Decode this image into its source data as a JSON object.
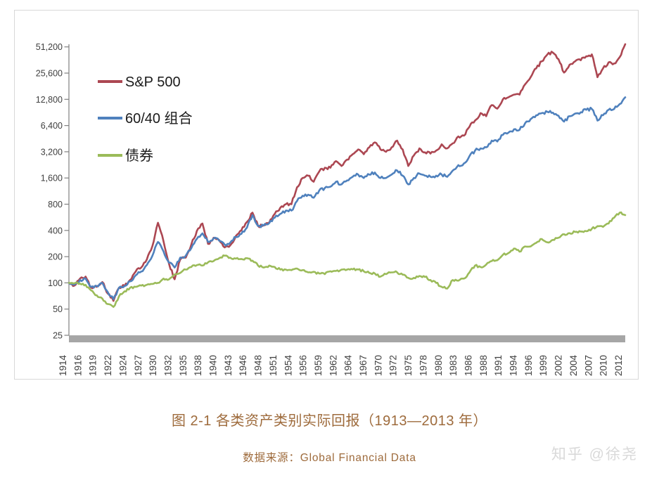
{
  "chart": {
    "legend": [
      {
        "label": "S&P 500",
        "color": "#AC4752"
      },
      {
        "label": "60/40 组合",
        "color": "#4F81BD"
      },
      {
        "label": "债券",
        "color": "#9BBB59"
      }
    ],
    "y_axis": {
      "tick_labels": [
        "51,200",
        "25,600",
        "12,800",
        "6,400",
        "3,200",
        "1,600",
        "800",
        "400",
        "200",
        "100",
        "50",
        "25"
      ]
    },
    "x_axis": {
      "tick_labels": [
        "1914",
        "1916",
        "1919",
        "1922",
        "1924",
        "1927",
        "1930",
        "1932",
        "1935",
        "1938",
        "1940",
        "1943",
        "1946",
        "1948",
        "1951",
        "1954",
        "1956",
        "1959",
        "1962",
        "1964",
        "1967",
        "1970",
        "1972",
        "1975",
        "1978",
        "1980",
        "1983",
        "1986",
        "1988",
        "1991",
        "1994",
        "1996",
        "1999",
        "2002",
        "2004",
        "2007",
        "2010",
        "2012"
      ]
    },
    "colors": {
      "axis_line": "#808080",
      "axis_text": "#404040",
      "baseline_bar": "#A6A6A6",
      "legend_text": "#1A1A1A"
    }
  },
  "caption": {
    "title": "图 2-1 各类资产类别实际回报（1913—2013 年）",
    "source": "数据来源：Global Financial Data"
  },
  "watermark": {
    "text": "知乎 @徐尧"
  },
  "chart_data": {
    "type": "line",
    "title": "图 2-1 各类资产类别实际回报（1913—2013 年）",
    "source": "数据来源：Global Financial Data",
    "y_scale": "log2",
    "ylim": [
      25,
      51200
    ],
    "y_ticks": [
      25,
      50,
      100,
      200,
      400,
      800,
      1600,
      3200,
      6400,
      12800,
      25600,
      51200
    ],
    "grid": false,
    "legend_position": "inside-top-left",
    "x": [
      1913,
      1914,
      1915,
      1916,
      1917,
      1918,
      1919,
      1920,
      1921,
      1922,
      1923,
      1924,
      1925,
      1926,
      1927,
      1928,
      1929,
      1930,
      1931,
      1932,
      1933,
      1934,
      1935,
      1936,
      1937,
      1938,
      1939,
      1940,
      1941,
      1942,
      1943,
      1944,
      1945,
      1946,
      1947,
      1948,
      1949,
      1950,
      1951,
      1952,
      1953,
      1954,
      1955,
      1956,
      1957,
      1958,
      1959,
      1960,
      1961,
      1962,
      1963,
      1964,
      1965,
      1966,
      1967,
      1968,
      1969,
      1970,
      1971,
      1972,
      1973,
      1974,
      1975,
      1976,
      1977,
      1978,
      1979,
      1980,
      1981,
      1982,
      1983,
      1984,
      1985,
      1986,
      1987,
      1988,
      1989,
      1990,
      1991,
      1992,
      1993,
      1994,
      1995,
      1996,
      1997,
      1998,
      1999,
      2000,
      2001,
      2002,
      2003,
      2004,
      2005,
      2006,
      2007,
      2008,
      2009,
      2010,
      2011,
      2012,
      2013
    ],
    "series": [
      {
        "name": "S&P 500",
        "color": "#AC4752",
        "values": [
          100,
          93,
          112,
          118,
          88,
          90,
          102,
          75,
          62,
          88,
          92,
          108,
          135,
          150,
          185,
          265,
          490,
          300,
          165,
          110,
          185,
          195,
          275,
          395,
          480,
          280,
          330,
          310,
          255,
          270,
          345,
          400,
          500,
          640,
          450,
          460,
          490,
          620,
          730,
          800,
          800,
          1250,
          1600,
          1700,
          1450,
          1900,
          2100,
          2100,
          2500,
          2200,
          2600,
          3000,
          3400,
          3000,
          3600,
          4100,
          3400,
          3200,
          3600,
          4300,
          3400,
          2200,
          2900,
          3500,
          3150,
          3050,
          3300,
          3900,
          3500,
          4000,
          4800,
          4900,
          6200,
          7300,
          8900,
          8200,
          11000,
          10000,
          12800,
          13500,
          14500,
          14500,
          19000,
          23000,
          29000,
          35000,
          42000,
          44000,
          37000,
          26000,
          32000,
          35000,
          36000,
          40000,
          42000,
          23000,
          29000,
          34000,
          33000,
          39000,
          55000
        ]
      },
      {
        "name": "60/40 组合",
        "color": "#4F81BD",
        "values": [
          100,
          96,
          108,
          112,
          90,
          92,
          100,
          78,
          65,
          88,
          92,
          104,
          122,
          135,
          160,
          205,
          295,
          230,
          170,
          150,
          195,
          205,
          250,
          320,
          370,
          295,
          325,
          305,
          275,
          290,
          335,
          365,
          430,
          600,
          450,
          455,
          485,
          560,
          620,
          675,
          675,
          870,
          1000,
          1030,
          950,
          1150,
          1230,
          1270,
          1450,
          1350,
          1500,
          1650,
          1750,
          1600,
          1750,
          1850,
          1600,
          1600,
          1750,
          1950,
          1700,
          1350,
          1600,
          1800,
          1700,
          1650,
          1700,
          1750,
          1650,
          1950,
          2250,
          2350,
          2850,
          3300,
          3500,
          3600,
          4300,
          4200,
          5000,
          5300,
          5800,
          5700,
          6800,
          7600,
          8400,
          8900,
          9200,
          9000,
          8300,
          7100,
          8200,
          8800,
          9100,
          9700,
          9900,
          7300,
          8400,
          9700,
          9900,
          11300,
          13500
        ]
      },
      {
        "name": "债券",
        "color": "#9BBB59",
        "values": [
          100,
          99,
          98,
          95,
          82,
          72,
          66,
          57,
          53,
          70,
          80,
          88,
          90,
          93,
          95,
          97,
          100,
          112,
          110,
          125,
          130,
          142,
          152,
          160,
          158,
          172,
          178,
          192,
          205,
          195,
          190,
          188,
          192,
          180,
          158,
          150,
          158,
          152,
          142,
          142,
          140,
          146,
          140,
          132,
          134,
          128,
          126,
          136,
          137,
          142,
          142,
          143,
          142,
          136,
          130,
          128,
          118,
          126,
          132,
          132,
          124,
          114,
          114,
          120,
          117,
          108,
          100,
          90,
          86,
          108,
          106,
          112,
          132,
          158,
          152,
          162,
          178,
          182,
          210,
          220,
          248,
          228,
          262,
          262,
          288,
          318,
          292,
          312,
          330,
          362,
          372,
          385,
          388,
          392,
          418,
          448,
          440,
          480,
          560,
          640,
          600
        ]
      }
    ]
  }
}
